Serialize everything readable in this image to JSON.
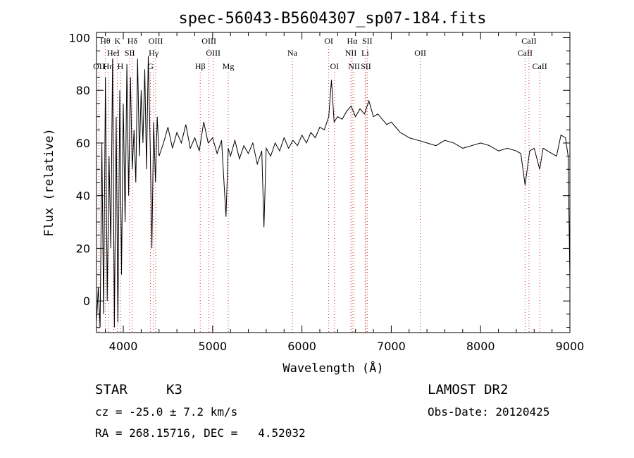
{
  "chart_data": {
    "type": "line",
    "title": "spec-56043-B5604307_sp07-184.fits",
    "xlabel": "Wavelength (Å)",
    "ylabel": "Flux (relative)",
    "xlim": [
      3700,
      9000
    ],
    "ylim": [
      -12,
      102
    ],
    "xticks": [
      4000,
      5000,
      6000,
      7000,
      8000,
      9000
    ],
    "yticks": [
      0,
      20,
      40,
      60,
      80,
      100
    ],
    "series": [
      {
        "name": "flux",
        "x": [
          3700,
          3720,
          3740,
          3760,
          3780,
          3800,
          3820,
          3840,
          3860,
          3880,
          3900,
          3920,
          3940,
          3960,
          3980,
          4000,
          4020,
          4040,
          4060,
          4080,
          4100,
          4120,
          4140,
          4160,
          4180,
          4200,
          4220,
          4240,
          4260,
          4280,
          4300,
          4320,
          4340,
          4360,
          4380,
          4400,
          4450,
          4500,
          4550,
          4600,
          4650,
          4700,
          4750,
          4800,
          4850,
          4900,
          4950,
          5000,
          5050,
          5100,
          5150,
          5175,
          5200,
          5250,
          5300,
          5350,
          5400,
          5450,
          5500,
          5550,
          5575,
          5600,
          5650,
          5700,
          5750,
          5800,
          5850,
          5900,
          5950,
          6000,
          6050,
          6100,
          6150,
          6200,
          6250,
          6300,
          6330,
          6360,
          6400,
          6450,
          6500,
          6550,
          6600,
          6650,
          6700,
          6750,
          6800,
          6850,
          6900,
          6950,
          7000,
          7050,
          7100,
          7150,
          7200,
          7300,
          7400,
          7500,
          7600,
          7700,
          7800,
          7900,
          8000,
          8100,
          8200,
          8300,
          8400,
          8450,
          8498,
          8550,
          8600,
          8662,
          8700,
          8750,
          8800,
          8850,
          8900,
          8950,
          8980,
          9000
        ],
        "values": [
          -8,
          5,
          -10,
          60,
          -5,
          85,
          0,
          55,
          20,
          92,
          -10,
          70,
          -8,
          80,
          10,
          75,
          30,
          90,
          40,
          85,
          50,
          65,
          45,
          92,
          55,
          80,
          60,
          88,
          50,
          93,
          60,
          20,
          68,
          45,
          70,
          55,
          60,
          66,
          58,
          64,
          60,
          67,
          58,
          62,
          57,
          68,
          60,
          62,
          56,
          61,
          32,
          58,
          55,
          61,
          54,
          59,
          56,
          60,
          52,
          57,
          28,
          58,
          55,
          60,
          57,
          62,
          58,
          61,
          59,
          63,
          60,
          64,
          62,
          66,
          65,
          70,
          84,
          68,
          70,
          69,
          72,
          74,
          70,
          73,
          71,
          76,
          70,
          71,
          69,
          67,
          68,
          66,
          64,
          63,
          62,
          61,
          60,
          59,
          61,
          60,
          58,
          59,
          60,
          59,
          57,
          58,
          57,
          56,
          44,
          57,
          58,
          50,
          58,
          57,
          56,
          55,
          63,
          62,
          55,
          8
        ]
      }
    ],
    "lines": [
      {
        "label": "Hθ",
        "x": 3798,
        "row": 1
      },
      {
        "label": "K",
        "x": 3934,
        "row": 1
      },
      {
        "label": "Hδ",
        "x": 4102,
        "row": 1
      },
      {
        "label": "OIII",
        "x": 4363,
        "row": 1
      },
      {
        "label": "OIII",
        "x": 4959,
        "row": 1
      },
      {
        "label": "OI",
        "x": 6300,
        "row": 1
      },
      {
        "label": "Hα",
        "x": 6563,
        "row": 1
      },
      {
        "label": "SII",
        "x": 6731,
        "row": 1
      },
      {
        "label": "CaII",
        "x": 8542,
        "row": 1
      },
      {
        "label": "HeI",
        "x": 3889,
        "row": 2
      },
      {
        "label": "SII",
        "x": 4072,
        "row": 2
      },
      {
        "label": "Hγ",
        "x": 4340,
        "row": 2
      },
      {
        "label": "OIII",
        "x": 5007,
        "row": 2
      },
      {
        "label": "Na",
        "x": 5893,
        "row": 2
      },
      {
        "label": "NII",
        "x": 6548,
        "row": 2
      },
      {
        "label": "Li",
        "x": 6708,
        "row": 2
      },
      {
        "label": "OII",
        "x": 7325,
        "row": 2
      },
      {
        "label": "CaII",
        "x": 8498,
        "row": 2
      },
      {
        "label": "OII",
        "x": 3727,
        "row": 3
      },
      {
        "label": "Hη",
        "x": 3835,
        "row": 3
      },
      {
        "label": "H",
        "x": 3968,
        "row": 3
      },
      {
        "label": "G",
        "x": 4304,
        "row": 3
      },
      {
        "label": "Hβ",
        "x": 4861,
        "row": 3
      },
      {
        "label": "Mg",
        "x": 5175,
        "row": 3
      },
      {
        "label": "OI",
        "x": 6364,
        "row": 3
      },
      {
        "label": "NII",
        "x": 6583,
        "row": 3
      },
      {
        "label": "SII",
        "x": 6716,
        "row": 3
      },
      {
        "label": "CaII",
        "x": 8662,
        "row": 3
      }
    ]
  },
  "info": {
    "object_class": "STAR",
    "subclass": "K3",
    "survey": "LAMOST DR2",
    "cz": "cz = -25.0 ± 7.2 km/s",
    "obs_date": "Obs-Date: 20120425",
    "coords": "RA = 268.15716, DEC =   4.52032"
  },
  "colors": {
    "line_marker": "#cc3333",
    "spectrum": "#000000"
  }
}
